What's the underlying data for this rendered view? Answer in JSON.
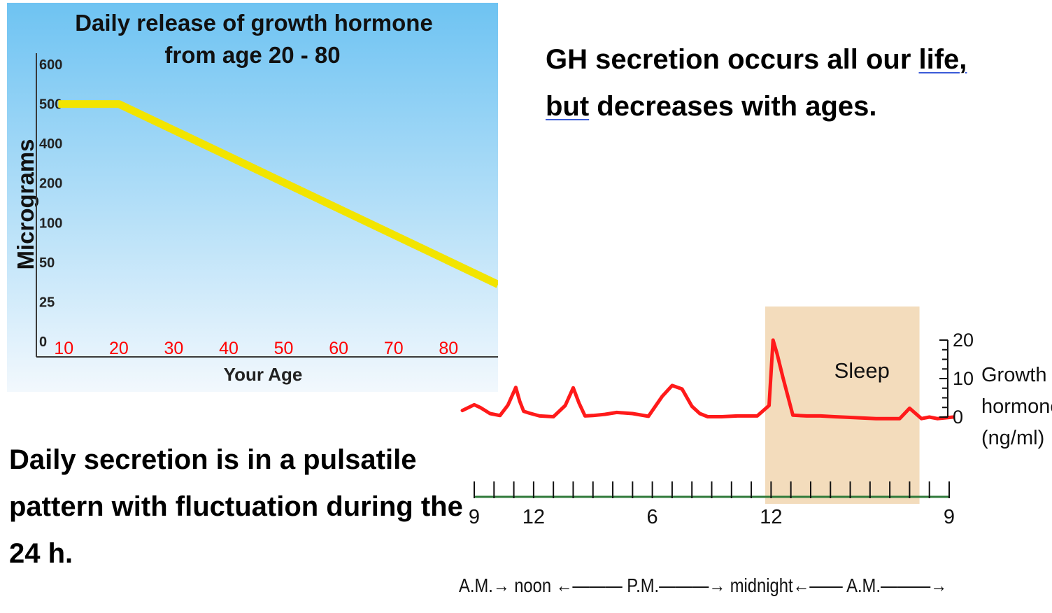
{
  "slide": {
    "top_text": {
      "part1": "GH secretion occurs all our ",
      "underline1": "life,",
      "underline2": "but",
      "part2": " decreases with ages."
    },
    "bottom_text": "Daily secretion is in a pulsatile pattern with fluctuation during the 24 h."
  },
  "colors": {
    "chart1_bg_top": "#6ec3f2",
    "chart1_bg_bottom": "#f2f8fd",
    "line1": "#f2e400",
    "tick_red": "#ff0000",
    "line2": "#ff1a1a",
    "sleep_band": "#f3dcbc"
  },
  "chart_data": [
    {
      "type": "line",
      "title": "Daily release of growth hormone",
      "subtitle": "from age 20 - 80",
      "xlabel": "Your Age",
      "ylabel": "Micrograms",
      "x_ticks": [
        "10",
        "20",
        "30",
        "40",
        "50",
        "60",
        "70",
        "80"
      ],
      "y_ticks": [
        "0",
        "25",
        "50",
        "100",
        "200",
        "400",
        "500",
        "600"
      ],
      "xlim": [
        5,
        89
      ],
      "y_scale": "categorical (equally spaced ticks)",
      "grid": false,
      "series": [
        {
          "x": [
            9,
            20,
            89
          ],
          "y": [
            500,
            500,
            36
          ]
        }
      ]
    },
    {
      "type": "line",
      "xlabel": "A.M.→ noon ←——— P.M.———→ midnight←—— A.M.———→",
      "x_ticks": [
        "9",
        "12",
        "6",
        "12",
        "9"
      ],
      "x_tick_hours": [
        0,
        3,
        9,
        15,
        24
      ],
      "y_ticks": [
        "20",
        "10",
        "0"
      ],
      "ylabel": "Growth hormone (ng/ml)",
      "ylim": [
        0,
        20
      ],
      "band": {
        "label": "Sleep",
        "from_hour": 14.7,
        "to_hour": 22.5
      },
      "series": [
        {
          "x": [
            -0.6,
            0,
            0.3,
            0.8,
            1.3,
            1.7,
            2.1,
            2.3,
            2.5,
            2.8,
            3.3,
            4.0,
            4.6,
            5.0,
            5.3,
            5.6,
            6.0,
            6.6,
            7.2,
            8.0,
            8.8,
            9.5,
            10.0,
            10.5,
            11.0,
            11.4,
            11.8,
            12.5,
            13.3,
            14.3,
            14.9,
            15.1,
            15.3,
            15.6,
            16.1,
            16.8,
            17.5,
            18.2,
            19.0,
            20.3,
            21.5,
            22.0,
            22.6,
            23.0,
            23.4,
            24.2
          ],
          "y": [
            1.7,
            3.2,
            2.5,
            0.9,
            0.4,
            3.1,
            7.7,
            4.1,
            1.5,
            1.0,
            0.3,
            0.1,
            3.0,
            7.6,
            3.6,
            0.3,
            0.4,
            0.7,
            1.2,
            0.9,
            0.2,
            5.4,
            8.2,
            7.3,
            2.8,
            0.9,
            0.1,
            0.1,
            0.3,
            0.3,
            3.0,
            20.0,
            16.5,
            10.3,
            0.5,
            0.3,
            0.3,
            0.1,
            -0.1,
            -0.4,
            -0.4,
            2.3,
            -0.4,
            0.0,
            -0.4,
            0.0
          ]
        }
      ]
    }
  ]
}
